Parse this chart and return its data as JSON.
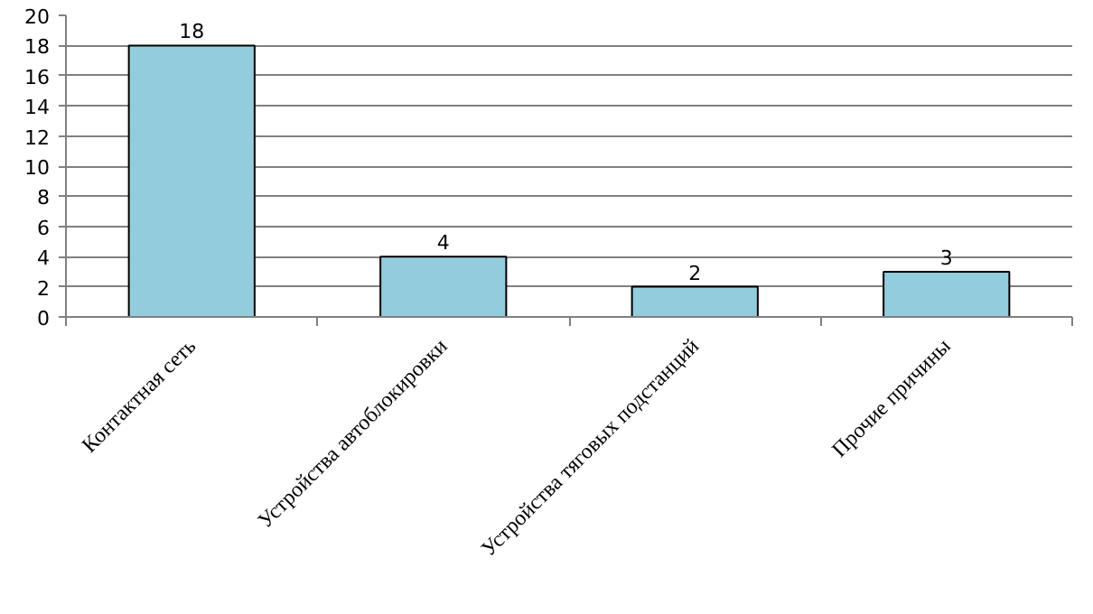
{
  "chart_data": {
    "type": "bar",
    "categories": [
      "Контактная сеть",
      "Устройства автоблокировки",
      "Устройства тяговых подстанций",
      "Прочие причины"
    ],
    "values": [
      18,
      4,
      2,
      3
    ],
    "color": "#93cddd",
    "ylim": [
      0,
      20
    ],
    "yticks": [
      0,
      2,
      4,
      6,
      8,
      10,
      12,
      14,
      16,
      18,
      20
    ],
    "grid": "y",
    "data_labels": true
  }
}
